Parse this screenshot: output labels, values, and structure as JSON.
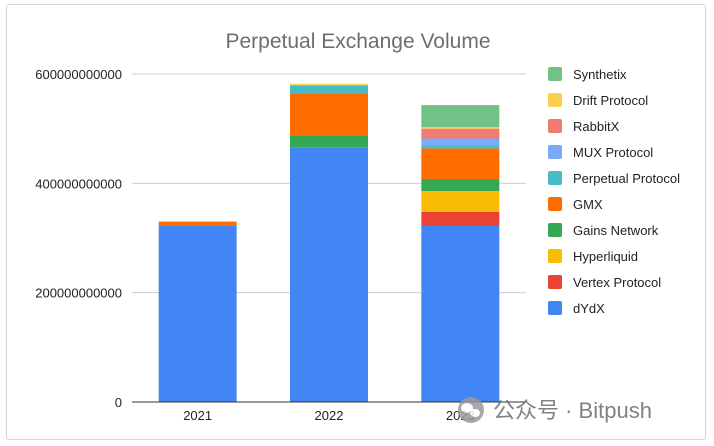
{
  "chart_data": {
    "type": "bar",
    "stacked": true,
    "title": "Perpetual Exchange Volume",
    "xlabel": "",
    "ylabel": "",
    "categories": [
      "2021",
      "2022",
      "2023"
    ],
    "ylim": [
      0,
      600000000000
    ],
    "yticks": [
      0,
      200000000000,
      400000000000,
      600000000000
    ],
    "ytick_labels": [
      "0",
      "200000000000",
      "400000000000",
      "600000000000"
    ],
    "grid": true,
    "legend_position": "right",
    "series": [
      {
        "name": "dYdX",
        "color": "#4285f4",
        "values": [
          322000000000,
          466000000000,
          322000000000
        ]
      },
      {
        "name": "Vertex Protocol",
        "color": "#ea4335",
        "values": [
          0,
          0,
          26000000000
        ]
      },
      {
        "name": "Hyperliquid",
        "color": "#fbbc04",
        "values": [
          0,
          0,
          38000000000
        ]
      },
      {
        "name": "Gains Network",
        "color": "#34a853",
        "values": [
          0,
          22000000000,
          22000000000
        ]
      },
      {
        "name": "GMX",
        "color": "#ff6d01",
        "values": [
          8000000000,
          77000000000,
          56000000000
        ]
      },
      {
        "name": "Perpetual Protocol",
        "color": "#46bdc6",
        "values": [
          0,
          14000000000,
          6000000000
        ]
      },
      {
        "name": "MUX Protocol",
        "color": "#7baaf7",
        "values": [
          0,
          0,
          12000000000
        ]
      },
      {
        "name": "RabbitX",
        "color": "#f07b72",
        "values": [
          0,
          0,
          18000000000
        ]
      },
      {
        "name": "Drift Protocol",
        "color": "#fcd04f",
        "values": [
          0,
          3000000000,
          3000000000
        ]
      },
      {
        "name": "Synthetix",
        "color": "#71c287",
        "values": [
          0,
          0,
          40000000000
        ]
      }
    ]
  },
  "watermark": {
    "text": "公众号 · Bitpush",
    "icon": "wechat-icon"
  }
}
